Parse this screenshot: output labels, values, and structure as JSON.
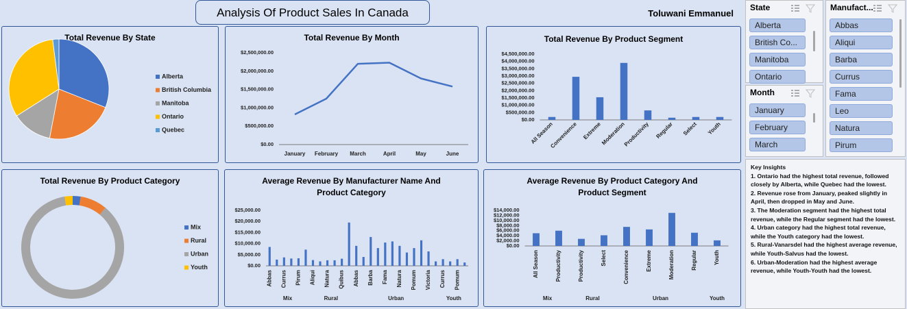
{
  "header": {
    "title": "Analysis Of Product Sales In Canada",
    "author": "Toluwani Emmanuel"
  },
  "chart_data": [
    {
      "type": "pie",
      "title": "Total Revenue By State",
      "categories": [
        "Alberta",
        "British Columbia",
        "Manitoba",
        "Ontario",
        "Quebec"
      ],
      "values": [
        31,
        22,
        13,
        32,
        2
      ],
      "colors": [
        "#4472c4",
        "#ed7d31",
        "#a5a5a5",
        "#ffc000",
        "#5b9bd5"
      ],
      "legend": "right"
    },
    {
      "type": "line",
      "title": "Total Revenue By Month",
      "categories": [
        "January",
        "February",
        "March",
        "April",
        "May",
        "June"
      ],
      "values": [
        820000,
        1250000,
        2200000,
        2230000,
        1800000,
        1580000
      ],
      "color": "#4472c4",
      "ylim": [
        0,
        2500000
      ],
      "yticks": [
        {
          "value": 0,
          "label": "$0.00"
        },
        {
          "value": 500000,
          "label": "$500,000.00"
        },
        {
          "value": 1000000,
          "label": "$1,000,000.00"
        },
        {
          "value": 1500000,
          "label": "$1,500,000.00"
        },
        {
          "value": 2000000,
          "label": "$2,000,000.00"
        },
        {
          "value": 2500000,
          "label": "$2,500,000.00"
        }
      ],
      "grid": false
    },
    {
      "type": "bar",
      "title": "Total Revenue By Product Segment",
      "categories": [
        "All Season",
        "Convenience",
        "Extreme",
        "Moderation",
        "Productivity",
        "Regular",
        "Select",
        "Youth"
      ],
      "values": [
        200000,
        2950000,
        1550000,
        3900000,
        650000,
        150000,
        200000,
        200000
      ],
      "color": "#4472c4",
      "ylim": [
        0,
        4500000
      ],
      "yticks": [
        {
          "value": 0,
          "label": "$0.00"
        },
        {
          "value": 500000,
          "label": "$500,000.00"
        },
        {
          "value": 1000000,
          "label": "$1,000,000.00"
        },
        {
          "value": 1500000,
          "label": "$1,500,000.00"
        },
        {
          "value": 2000000,
          "label": "$2,000,000.00"
        },
        {
          "value": 2500000,
          "label": "$2,500,000.00"
        },
        {
          "value": 3000000,
          "label": "$3,000,000.00"
        },
        {
          "value": 3500000,
          "label": "$3,500,000.00"
        },
        {
          "value": 4000000,
          "label": "$4,000,000.00"
        },
        {
          "value": 4500000,
          "label": "$4,500,000.00"
        }
      ],
      "grid": false
    },
    {
      "type": "donut",
      "title": "Total Revenue By Product Category",
      "categories": [
        "Mix",
        "Rural",
        "Urban",
        "Youth"
      ],
      "values": [
        2.5,
        8.5,
        86.5,
        2.5
      ],
      "colors": [
        "#4472c4",
        "#ed7d31",
        "#a5a5a5",
        "#ffc000"
      ],
      "legend": "right"
    },
    {
      "type": "bar",
      "title": "Average Revenue By Manufacturer Name And Product Category",
      "groups": [
        {
          "name": "Mix",
          "categories": [
            "Abbas",
            null,
            "Currus",
            null,
            "Pirum",
            null
          ],
          "values": [
            8500,
            2800,
            3800,
            3300,
            3400,
            7300
          ]
        },
        {
          "name": "Rural",
          "categories": [
            "Aliqui",
            null,
            "Natura",
            null,
            "Quibus",
            null
          ],
          "values": [
            2600,
            2000,
            2500,
            2500,
            3200,
            19500
          ]
        },
        {
          "name": "Urban",
          "categories": [
            "Abbas",
            null,
            "Barba",
            null,
            "Fama",
            null,
            "Natura",
            null,
            "Pomum",
            null,
            "Victoria",
            null
          ],
          "values": [
            9000,
            4000,
            13000,
            8000,
            10500,
            11000,
            9000,
            6000,
            8000,
            11500,
            6500,
            2000
          ]
        },
        {
          "name": "Youth",
          "categories": [
            "Currus",
            null,
            "Pomum",
            null
          ],
          "values": [
            3000,
            2000,
            3000,
            1500
          ]
        }
      ],
      "color": "#4472c4",
      "ylim": [
        0,
        25000
      ],
      "yticks": [
        {
          "value": 0,
          "label": "$0.00"
        },
        {
          "value": 5000,
          "label": "$5,000.00"
        },
        {
          "value": 10000,
          "label": "$10,000.00"
        },
        {
          "value": 15000,
          "label": "$15,000.00"
        },
        {
          "value": 20000,
          "label": "$20,000.00"
        },
        {
          "value": 25000,
          "label": "$25,000.00"
        }
      ],
      "grid": false
    },
    {
      "type": "bar",
      "title": "Average Revenue By Product Category And Product Segment",
      "groups": [
        {
          "name": "Mix",
          "categories": [
            "All Season",
            "Productivity"
          ],
          "values": [
            5000,
            6000
          ]
        },
        {
          "name": "Rural",
          "categories": [
            "Productivity",
            "Select"
          ],
          "values": [
            2800,
            4200
          ]
        },
        {
          "name": "Urban",
          "categories": [
            "Convenience",
            "Extreme",
            "Moderation",
            "Regular"
          ],
          "values": [
            7500,
            6500,
            13000,
            5200
          ]
        },
        {
          "name": "Youth",
          "categories": [
            "Youth"
          ],
          "values": [
            2200
          ]
        }
      ],
      "color": "#4472c4",
      "ylim": [
        0,
        14000
      ],
      "yticks": [
        {
          "value": 0,
          "label": "$0.00"
        },
        {
          "value": 2000,
          "label": "$2,000.00"
        },
        {
          "value": 4000,
          "label": "$4,000.00"
        },
        {
          "value": 6000,
          "label": "$6,000.00"
        },
        {
          "value": 8000,
          "label": "$8,000.00"
        },
        {
          "value": 10000,
          "label": "$10,000.00"
        },
        {
          "value": 12000,
          "label": "$12,000.00"
        },
        {
          "value": 14000,
          "label": "$14,000.00"
        }
      ],
      "grid": false
    }
  ],
  "slicers": [
    {
      "title": "State",
      "items": [
        "Alberta",
        "British Co...",
        "Manitoba",
        "Ontario"
      ]
    },
    {
      "title": "Month",
      "items": [
        "January",
        "February",
        "March"
      ]
    },
    {
      "title": "Manufact...",
      "items": [
        "Abbas",
        "Aliqui",
        "Barba",
        "Currus",
        "Fama",
        "Leo",
        "Natura",
        "Pirum"
      ]
    }
  ],
  "insights": {
    "title": "Key Insights",
    "items": [
      "1. Ontario had the highest total revenue, followed closely by Alberta, while Quebec had the lowest.",
      "2. Revenue rose from January, peaked slightly in April, then dropped in May and June.",
      "3. The Moderation segment had the highest total revenue, while the Regular segment had the lowest.",
      "4.  Urban category had the highest total revenue, while the Youth category had the lowest.",
      "5. Rural-Vanarsdel had the highest average revenue, while Youth-Salvus had the lowest.",
      "6. Urban-Moderation had the highest average revenue, while Youth-Youth had the lowest."
    ]
  }
}
